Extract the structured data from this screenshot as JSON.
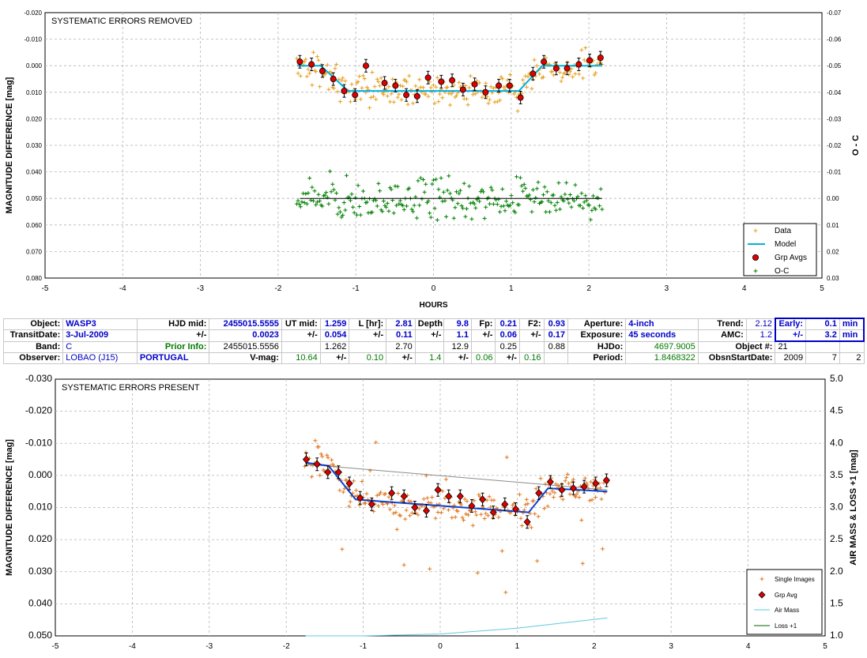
{
  "chart_data": [
    {
      "type": "scatter",
      "title": "SYSTEMATIC ERRORS REMOVED",
      "xlabel": "HOURS",
      "ylabel": "MAGNITUDE DIFFERENCE [mag]",
      "y2label": "O - C",
      "xlim": [
        -5,
        5
      ],
      "ylim": [
        -0.02,
        0.08
      ],
      "y_inverted": true,
      "y2lim": [
        -0.07,
        0.03
      ],
      "x_ticks": [
        "-5",
        "-4",
        "-3",
        "-2",
        "-1",
        "0",
        "1",
        "2",
        "3",
        "4",
        "5"
      ],
      "y_ticks": [
        "-0.020",
        "-0.010",
        "0.000",
        "0.010",
        "0.020",
        "0.030",
        "0.040",
        "0.050",
        "0.060",
        "0.070",
        "0.080"
      ],
      "y2_ticks": [
        "-0.07",
        "-0.06",
        "-0.05",
        "-0.04",
        "-0.03",
        "-0.02",
        "-0.01",
        "0.00",
        "0.01",
        "0.02",
        "0.03"
      ],
      "grid": true,
      "legend_position": "bottom-right",
      "legend": [
        "Data",
        "Model",
        "Grp Avgs",
        "O-C"
      ],
      "model": {
        "x": [
          -1.75,
          -1.45,
          -1.1,
          1.1,
          1.4,
          2.17
        ],
        "y": [
          0.0,
          0.0,
          0.0095,
          0.0095,
          0.0,
          0.0
        ]
      },
      "grp_avgs": {
        "x": [
          -1.72,
          -1.57,
          -1.43,
          -1.29,
          -1.15,
          -1.01,
          -0.87,
          -0.63,
          -0.49,
          -0.35,
          -0.21,
          -0.07,
          0.1,
          0.24,
          0.38,
          0.53,
          0.67,
          0.84,
          0.98,
          1.12,
          1.28,
          1.42,
          1.58,
          1.72,
          1.87,
          2.01,
          2.15
        ],
        "y": [
          -0.0015,
          -0.0005,
          0.002,
          0.005,
          0.0095,
          0.011,
          0.0,
          0.0065,
          0.0075,
          0.011,
          0.0115,
          0.0045,
          0.006,
          0.0055,
          0.009,
          0.007,
          0.01,
          0.0075,
          0.0075,
          0.012,
          0.003,
          -0.0015,
          0.001,
          0.001,
          -0.0005,
          -0.002,
          -0.003
        ]
      },
      "oc_baseline": 0.0
    },
    {
      "type": "scatter",
      "title": "SYSTEMATIC ERRORS PRESENT",
      "ylabel": "MAGNITUDE DIFFERENCE [mag]",
      "y2label": "AIR MASS & LOSS +1 [mag]",
      "xlim": [
        -5,
        5
      ],
      "ylim": [
        -0.03,
        0.05
      ],
      "y_inverted": true,
      "y2lim": [
        1.0,
        5.0
      ],
      "x_ticks": [
        "-5",
        "-4",
        "-3",
        "-2",
        "-1",
        "0",
        "1",
        "2",
        "3",
        "4",
        "5"
      ],
      "y_ticks": [
        "-0.030",
        "-0.020",
        "-0.010",
        "0.000",
        "0.010",
        "0.020",
        "0.030",
        "0.040",
        "0.050"
      ],
      "y2_ticks": [
        "5.0",
        "4.5",
        "4.0",
        "3.5",
        "3.0",
        "2.5",
        "2.0",
        "1.5",
        "1.0"
      ],
      "grid": true,
      "legend_position": "bottom-right",
      "legend": [
        "Single Images",
        "Grp Avg",
        "Air Mass",
        "Loss +1"
      ],
      "model": {
        "x": [
          -1.75,
          -1.45,
          -1.1,
          1.15,
          1.4,
          2.17
        ],
        "y": [
          -0.004,
          -0.003,
          0.0075,
          0.0115,
          0.004,
          0.005
        ]
      },
      "trend": {
        "x": [
          -1.75,
          2.17
        ],
        "y": [
          -0.0035,
          0.0045
        ]
      },
      "grp_avgs": {
        "x": [
          -1.74,
          -1.6,
          -1.46,
          -1.32,
          -1.18,
          -1.04,
          -0.89,
          -0.63,
          -0.47,
          -0.33,
          -0.18,
          -0.03,
          0.11,
          0.26,
          0.41,
          0.55,
          0.69,
          0.84,
          0.98,
          1.13,
          1.28,
          1.43,
          1.58,
          1.73,
          1.87,
          2.02,
          2.16
        ],
        "y": [
          -0.005,
          -0.0035,
          -0.001,
          -0.001,
          0.0025,
          0.007,
          0.009,
          0.0055,
          0.0065,
          0.01,
          0.011,
          0.0045,
          0.0065,
          0.0065,
          0.0095,
          0.0075,
          0.0115,
          0.009,
          0.0105,
          0.0145,
          0.0055,
          0.002,
          0.0045,
          0.004,
          0.0035,
          0.0025,
          0.0015
        ]
      },
      "airmass": {
        "x": [
          -1.75,
          -1.0,
          0.0,
          1.0,
          2.17
        ],
        "y": [
          1.0,
          1.0,
          1.03,
          1.12,
          1.28
        ]
      }
    }
  ],
  "table": {
    "row1": {
      "object_lbl": "Object:",
      "object": "WASP3",
      "hjd_mid_lbl": "HJD mid:",
      "hjd_mid": "2455015.5555",
      "ut_mid_lbl": "UT mid:",
      "ut_mid": "1.259",
      "l_hr_lbl": "L [hr]:",
      "l_hr": "2.81",
      "depth_lbl": "Depth:",
      "depth": "9.8",
      "fp_lbl": "Fp:",
      "fp": "0.21",
      "f2_lbl": "F2:",
      "f2": "0.93",
      "aperture_lbl": "Aperture:",
      "aperture": "4-inch",
      "trend_lbl": "Trend:",
      "trend": "2.12",
      "early_lbl": "Early:",
      "early": "0.1",
      "min1": "min"
    },
    "row2": {
      "transit_lbl": "TransitDate:",
      "transit": "3-Jul-2009",
      "pm1": "+/-",
      "hjd_err": "0.0023",
      "pm2": "+/-",
      "ut_err": "0.054",
      "pm3": "+/-",
      "l_err": "0.11",
      "pm4": "+/-",
      "depth_err": "1.1",
      "pm5": "+/-",
      "fp_err": "0.06",
      "pm6": "+/-",
      "f2_err": "0.17",
      "exposure_lbl": "Exposure:",
      "exposure": "45 seconds",
      "amc_lbl": "AMC:",
      "amc": "1.2",
      "pm7": "+/-",
      "early_err": "3.2",
      "min2": "min"
    },
    "row3": {
      "band_lbl": "Band:",
      "band": "C",
      "prior_lbl": "Prior Info:",
      "prior_hjd": "2455015.5556",
      "prior_ut": "1.262",
      "prior_l": "2.70",
      "prior_depth": "12.9",
      "prior_fp": "0.25",
      "prior_f2": "0.88",
      "hjdo_lbl": "HJDo:",
      "hjdo": "4697.9005",
      "objnum_lbl": "Object #:",
      "objnum": "21"
    },
    "row4": {
      "observer_lbl": "Observer:",
      "observer": "LOBAO (J15)",
      "country": "PORTUGAL",
      "vmag_lbl": "V-mag:",
      "vmag": "10.64",
      "pm1": "+/-",
      "vmag_err1": "0.10",
      "pm2": "+/-",
      "vmag_err2": "1.4",
      "pm3": "+/-",
      "vmag_err3": "0.06",
      "pm4": "+/-",
      "vmag_err4": "0.16",
      "period_lbl": "Period:",
      "period": "1.8468322",
      "obsstart_lbl": "ObsnStartDate:",
      "year": "2009",
      "month": "7",
      "day": "2"
    }
  },
  "colors": {
    "data": "#e8a020",
    "model": "#00b0e0",
    "grp_avg": "#e00000",
    "oc": "#008000",
    "model2": "#1040d0",
    "trend": "#8c8c8c",
    "airmass": "#60c8e0",
    "loss": "#006000",
    "single": "#e07820"
  }
}
